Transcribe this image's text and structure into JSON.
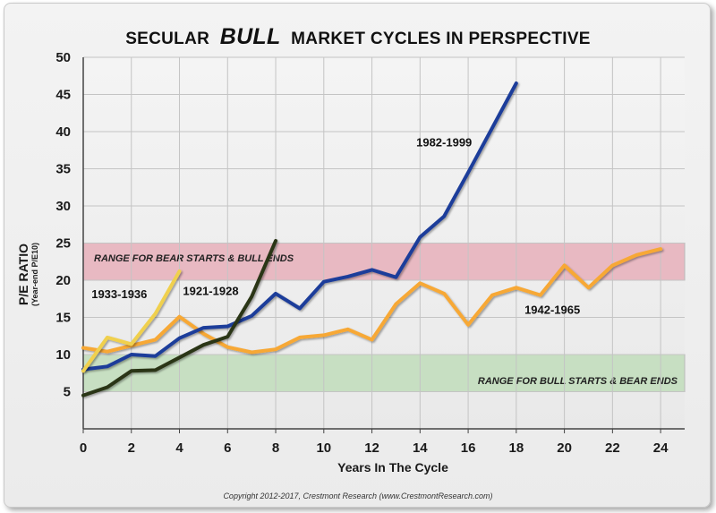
{
  "chart_data": {
    "type": "line",
    "title_parts": [
      "SECULAR",
      "BULL",
      "MARKET CYCLES IN PERSPECTIVE"
    ],
    "xlabel": "Years In The Cycle",
    "ylabel": "P/E RATIO",
    "ylabel_sub": "(Year-end P/E10)",
    "xlim": [
      0,
      25
    ],
    "ylim": [
      0,
      50
    ],
    "x_ticks": [
      0,
      2,
      4,
      6,
      8,
      10,
      12,
      14,
      16,
      18,
      20,
      22,
      24
    ],
    "y_ticks": [
      5,
      10,
      15,
      20,
      25,
      30,
      35,
      40,
      45,
      50
    ],
    "bands": [
      {
        "name": "bear-starts-bull-ends",
        "label": "RANGE FOR BEAR STARTS & BULL ENDS",
        "y0": 20,
        "y1": 25,
        "color": "#e8b9c2"
      },
      {
        "name": "bull-starts-bear-ends",
        "label": "RANGE FOR BULL STARTS & BEAR ENDS",
        "y0": 5,
        "y1": 10,
        "color": "#c7dfc2"
      }
    ],
    "series": [
      {
        "name": "1942-1965",
        "color": "#f7a834",
        "label_at": [
          19.5,
          15.5
        ],
        "x": [
          0,
          1,
          2,
          3,
          4,
          5,
          6,
          7,
          8,
          9,
          10,
          11,
          12,
          13,
          14,
          15,
          16,
          17,
          18,
          19,
          20,
          21,
          22,
          23,
          24
        ],
        "values": [
          10.9,
          10.4,
          11.2,
          12.0,
          15.1,
          12.8,
          11.0,
          10.3,
          10.7,
          12.3,
          12.6,
          13.4,
          12.0,
          16.8,
          19.6,
          18.2,
          14.0,
          18.0,
          19.0,
          18.0,
          22.0,
          19.0,
          22.0,
          23.4,
          24.2
        ]
      },
      {
        "name": "1982-1999",
        "color": "#1f3d9a",
        "label_at": [
          15.0,
          38.0
        ],
        "x": [
          0,
          1,
          2,
          3,
          4,
          5,
          6,
          7,
          8,
          9,
          10,
          11,
          12,
          13,
          14,
          15,
          16,
          17,
          18
        ],
        "values": [
          8.0,
          8.4,
          10.0,
          9.8,
          12.2,
          13.6,
          13.8,
          15.2,
          18.2,
          16.2,
          19.8,
          20.5,
          21.4,
          20.4,
          25.8,
          28.6,
          34.5,
          40.5,
          46.5
        ]
      },
      {
        "name": "1921-1928",
        "color": "#2c3518",
        "label_at": [
          5.3,
          18.0
        ],
        "x": [
          0,
          1,
          2,
          3,
          4,
          5,
          6,
          7,
          8
        ],
        "values": [
          4.5,
          5.6,
          7.8,
          7.9,
          9.6,
          11.3,
          12.4,
          17.8,
          25.3
        ]
      },
      {
        "name": "1933-1936",
        "color": "#f0d04e",
        "label_at": [
          1.5,
          17.6
        ],
        "x": [
          0,
          1,
          2,
          3,
          4
        ],
        "values": [
          7.8,
          12.3,
          11.4,
          15.5,
          21.2
        ]
      }
    ]
  },
  "copyright": "Copyright 2012-2017, Crestmont Research (www.CrestmontResearch.com)"
}
